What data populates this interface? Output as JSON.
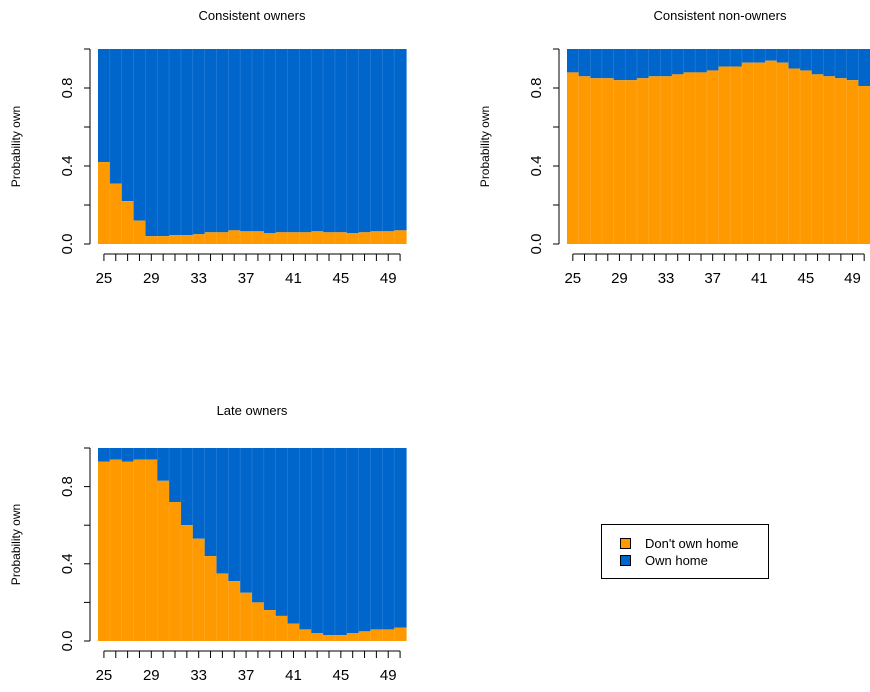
{
  "colors": {
    "dont_own": "#FF9900",
    "own": "#0066CC"
  },
  "legend": {
    "items": [
      "Don't own home",
      "Own home"
    ]
  },
  "chart_data": [
    {
      "type": "area",
      "title": "Consistent owners",
      "ylabel": "Probability own",
      "xlabel": "",
      "x": [
        25,
        26,
        27,
        28,
        29,
        30,
        31,
        32,
        33,
        34,
        35,
        36,
        37,
        38,
        39,
        40,
        41,
        42,
        43,
        44,
        45,
        46,
        47,
        48,
        49,
        50
      ],
      "xticks": [
        "25",
        "29",
        "33",
        "37",
        "41",
        "45",
        "49"
      ],
      "yticks": [
        "0.0",
        "0.4",
        "0.8"
      ],
      "ylim": [
        0,
        1
      ],
      "series": [
        {
          "name": "Don't own home",
          "values": [
            0.42,
            0.31,
            0.22,
            0.12,
            0.04,
            0.04,
            0.045,
            0.045,
            0.05,
            0.06,
            0.06,
            0.07,
            0.065,
            0.065,
            0.055,
            0.06,
            0.06,
            0.06,
            0.065,
            0.06,
            0.06,
            0.055,
            0.06,
            0.065,
            0.065,
            0.07
          ]
        },
        {
          "name": "Own home",
          "values": [
            0.58,
            0.69,
            0.78,
            0.88,
            0.96,
            0.96,
            0.955,
            0.955,
            0.95,
            0.94,
            0.94,
            0.93,
            0.935,
            0.935,
            0.945,
            0.94,
            0.94,
            0.94,
            0.935,
            0.94,
            0.94,
            0.945,
            0.94,
            0.935,
            0.935,
            0.93
          ]
        }
      ]
    },
    {
      "type": "area",
      "title": "Consistent non-owners",
      "ylabel": "Probability own",
      "xlabel": "",
      "x": [
        25,
        26,
        27,
        28,
        29,
        30,
        31,
        32,
        33,
        34,
        35,
        36,
        37,
        38,
        39,
        40,
        41,
        42,
        43,
        44,
        45,
        46,
        47,
        48,
        49,
        50
      ],
      "xticks": [
        "25",
        "29",
        "33",
        "37",
        "41",
        "45",
        "49"
      ],
      "yticks": [
        "0.0",
        "0.4",
        "0.8"
      ],
      "ylim": [
        0,
        1
      ],
      "series": [
        {
          "name": "Don't own home",
          "values": [
            0.88,
            0.86,
            0.85,
            0.85,
            0.84,
            0.84,
            0.85,
            0.86,
            0.86,
            0.87,
            0.88,
            0.88,
            0.89,
            0.91,
            0.91,
            0.93,
            0.93,
            0.94,
            0.93,
            0.9,
            0.89,
            0.87,
            0.86,
            0.85,
            0.84,
            0.81
          ]
        },
        {
          "name": "Own home",
          "values": [
            0.12,
            0.14,
            0.15,
            0.15,
            0.16,
            0.16,
            0.15,
            0.14,
            0.14,
            0.13,
            0.12,
            0.12,
            0.11,
            0.09,
            0.09,
            0.07,
            0.07,
            0.06,
            0.07,
            0.1,
            0.11,
            0.13,
            0.14,
            0.15,
            0.16,
            0.19
          ]
        }
      ]
    },
    {
      "type": "area",
      "title": "Late owners",
      "ylabel": "Probability own",
      "xlabel": "",
      "x": [
        25,
        26,
        27,
        28,
        29,
        30,
        31,
        32,
        33,
        34,
        35,
        36,
        37,
        38,
        39,
        40,
        41,
        42,
        43,
        44,
        45,
        46,
        47,
        48,
        49,
        50
      ],
      "xticks": [
        "25",
        "29",
        "33",
        "37",
        "41",
        "45",
        "49"
      ],
      "yticks": [
        "0.0",
        "0.4",
        "0.8"
      ],
      "ylim": [
        0,
        1
      ],
      "series": [
        {
          "name": "Don't own home",
          "values": [
            0.93,
            0.94,
            0.93,
            0.94,
            0.94,
            0.83,
            0.72,
            0.6,
            0.53,
            0.44,
            0.35,
            0.31,
            0.25,
            0.2,
            0.16,
            0.13,
            0.09,
            0.06,
            0.04,
            0.03,
            0.03,
            0.04,
            0.05,
            0.06,
            0.06,
            0.07
          ]
        },
        {
          "name": "Own home",
          "values": [
            0.07,
            0.06,
            0.07,
            0.06,
            0.06,
            0.17,
            0.28,
            0.4,
            0.47,
            0.56,
            0.65,
            0.69,
            0.75,
            0.8,
            0.84,
            0.87,
            0.91,
            0.94,
            0.96,
            0.97,
            0.97,
            0.96,
            0.95,
            0.94,
            0.94,
            0.93
          ]
        }
      ]
    }
  ]
}
